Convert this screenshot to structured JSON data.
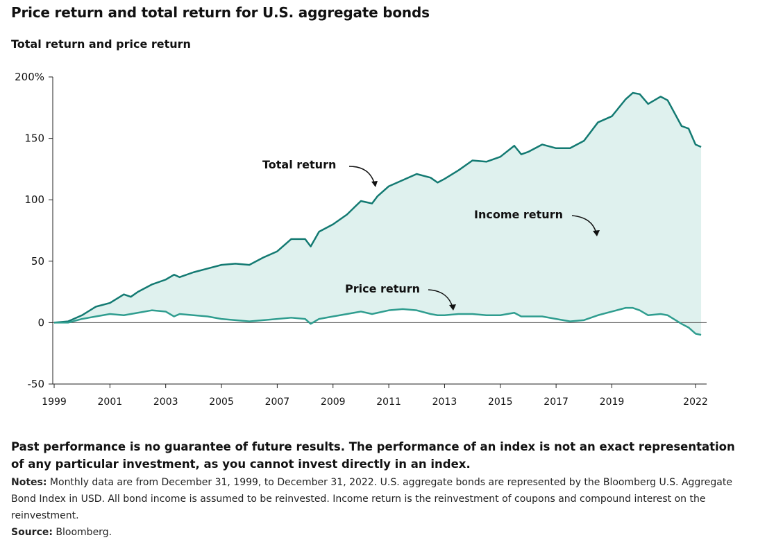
{
  "header": {
    "title": "Price return and total return for U.S. aggregate bonds",
    "subtitle": "Total return and price return"
  },
  "chart_data": {
    "type": "area",
    "title": "Price return and total return for U.S. aggregate bonds",
    "subtitle": "Total return and price return",
    "xlabel": "",
    "ylabel": "",
    "xlim": [
      1999,
      2022
    ],
    "ylim": [
      -50,
      200
    ],
    "x_ticks": [
      "1999",
      "2001",
      "2003",
      "2005",
      "2007",
      "2009",
      "2011",
      "2013",
      "2015",
      "2017",
      "2019",
      "2022"
    ],
    "y_ticks": [
      "200%",
      "150",
      "100",
      "50",
      "0",
      "-50"
    ],
    "grid": false,
    "series": [
      {
        "name": "Total return",
        "color": "#137a72",
        "points": [
          [
            1999,
            0
          ],
          [
            1999.5,
            1
          ],
          [
            2000,
            6
          ],
          [
            2000.5,
            13
          ],
          [
            2001,
            16
          ],
          [
            2001.5,
            23
          ],
          [
            2001.75,
            21
          ],
          [
            2002,
            25
          ],
          [
            2002.5,
            31
          ],
          [
            2003,
            35
          ],
          [
            2003.3,
            39
          ],
          [
            2003.5,
            37
          ],
          [
            2004,
            41
          ],
          [
            2004.5,
            44
          ],
          [
            2005,
            47
          ],
          [
            2005.5,
            48
          ],
          [
            2006,
            47
          ],
          [
            2006.5,
            53
          ],
          [
            2007,
            58
          ],
          [
            2007.5,
            68
          ],
          [
            2008,
            68
          ],
          [
            2008.2,
            62
          ],
          [
            2008.5,
            74
          ],
          [
            2009,
            80
          ],
          [
            2009.5,
            88
          ],
          [
            2010,
            99
          ],
          [
            2010.4,
            97
          ],
          [
            2010.6,
            103
          ],
          [
            2011,
            111
          ],
          [
            2011.5,
            116
          ],
          [
            2012,
            121
          ],
          [
            2012.5,
            118
          ],
          [
            2012.75,
            114
          ],
          [
            2013,
            117
          ],
          [
            2013.5,
            124
          ],
          [
            2014,
            132
          ],
          [
            2014.5,
            131
          ],
          [
            2015,
            135
          ],
          [
            2015.5,
            144
          ],
          [
            2015.75,
            137
          ],
          [
            2016,
            139
          ],
          [
            2016.5,
            145
          ],
          [
            2017,
            142
          ],
          [
            2017.5,
            142
          ],
          [
            2018,
            148
          ],
          [
            2018.5,
            163
          ],
          [
            2019,
            168
          ],
          [
            2019.5,
            182
          ],
          [
            2019.75,
            187
          ],
          [
            2020,
            186
          ],
          [
            2020.3,
            178
          ],
          [
            2020.75,
            184
          ],
          [
            2021,
            181
          ],
          [
            2021.5,
            160
          ],
          [
            2021.75,
            158
          ],
          [
            2022,
            145
          ],
          [
            2022.2,
            143
          ]
        ]
      },
      {
        "name": "Price return",
        "color": "#2f9d8f",
        "points": [
          [
            1999,
            0
          ],
          [
            1999.5,
            0
          ],
          [
            2000,
            3
          ],
          [
            2000.5,
            5
          ],
          [
            2001,
            7
          ],
          [
            2001.5,
            6
          ],
          [
            2002,
            8
          ],
          [
            2002.5,
            10
          ],
          [
            2003,
            9
          ],
          [
            2003.3,
            5
          ],
          [
            2003.5,
            7
          ],
          [
            2004,
            6
          ],
          [
            2004.5,
            5
          ],
          [
            2005,
            3
          ],
          [
            2005.5,
            2
          ],
          [
            2006,
            1
          ],
          [
            2006.5,
            2
          ],
          [
            2007,
            3
          ],
          [
            2007.5,
            4
          ],
          [
            2008,
            3
          ],
          [
            2008.2,
            -1
          ],
          [
            2008.5,
            3
          ],
          [
            2009,
            5
          ],
          [
            2009.5,
            7
          ],
          [
            2010,
            9
          ],
          [
            2010.4,
            7
          ],
          [
            2010.6,
            8
          ],
          [
            2011,
            10
          ],
          [
            2011.5,
            11
          ],
          [
            2012,
            10
          ],
          [
            2012.5,
            7
          ],
          [
            2012.75,
            6
          ],
          [
            2013,
            6
          ],
          [
            2013.5,
            7
          ],
          [
            2014,
            7
          ],
          [
            2014.5,
            6
          ],
          [
            2015,
            6
          ],
          [
            2015.5,
            8
          ],
          [
            2015.75,
            5
          ],
          [
            2016,
            5
          ],
          [
            2016.5,
            5
          ],
          [
            2017,
            3
          ],
          [
            2017.5,
            1
          ],
          [
            2018,
            2
          ],
          [
            2018.5,
            6
          ],
          [
            2019,
            9
          ],
          [
            2019.5,
            12
          ],
          [
            2019.75,
            12
          ],
          [
            2020,
            10
          ],
          [
            2020.3,
            6
          ],
          [
            2020.75,
            7
          ],
          [
            2021,
            6
          ],
          [
            2021.5,
            -1
          ],
          [
            2021.75,
            -4
          ],
          [
            2022,
            -9
          ],
          [
            2022.2,
            -10
          ]
        ]
      }
    ],
    "area_label": "Income return",
    "annotations": [
      "Total return",
      "Price return",
      "Income return"
    ],
    "fill_color": "#dff1ee"
  },
  "footer": {
    "disclaimer": "Past performance is no guarantee of future results. The performance of an index is not an exact representation of any particular investment, as you cannot invest directly in an index.",
    "notes_label": "Notes:",
    "notes_text": " Monthly data are from December 31, 1999, to December 31, 2022. U.S. aggregate bonds are represented by the Bloomberg U.S. Aggregate Bond Index in USD. All bond income is assumed to be reinvested. Income return is the reinvestment of coupons and compound interest on the reinvestment.",
    "source_label": "Source:",
    "source_text": " Bloomberg."
  }
}
